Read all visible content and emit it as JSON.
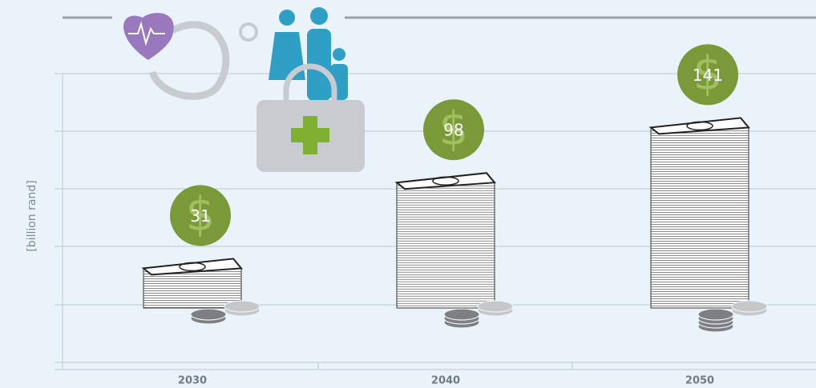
{
  "chart_data": {
    "type": "bar",
    "categories": [
      "2030",
      "2040",
      "2050"
    ],
    "values": [
      31,
      98,
      141
    ],
    "ylabel": "[billion rand]",
    "ylim": [
      0,
      150
    ],
    "color": "#7a9a3a"
  }
}
